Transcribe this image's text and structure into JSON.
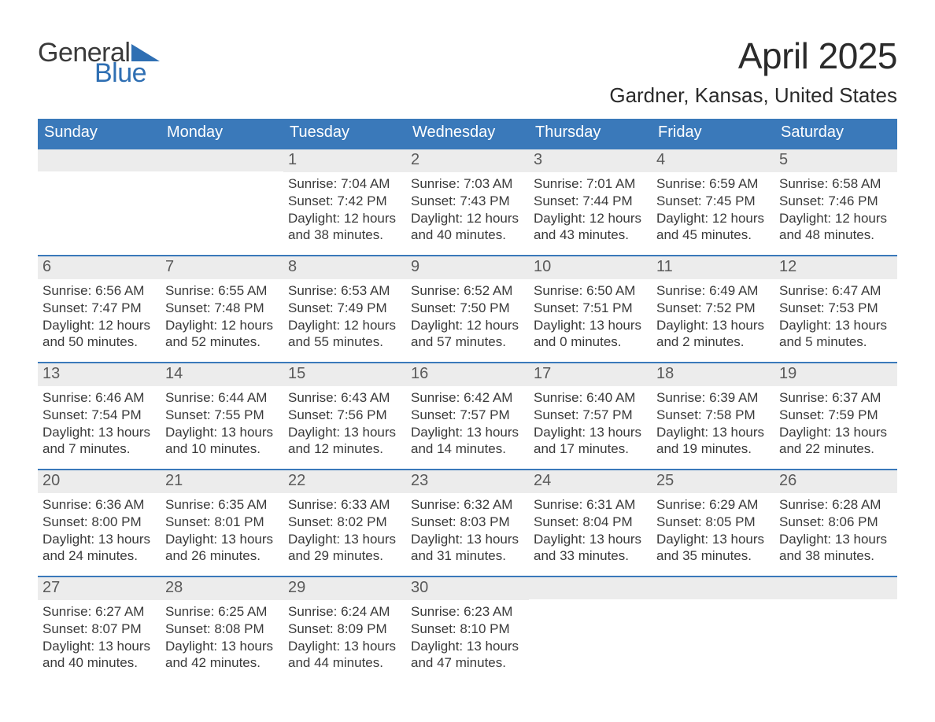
{
  "brand": {
    "word1": "General",
    "word2": "Blue",
    "mark_color": "#2f6fb3"
  },
  "title": "April 2025",
  "location": "Gardner, Kansas, United States",
  "colors": {
    "header_bg": "#3a79ba",
    "header_text": "#ffffff",
    "week_border": "#3a79ba",
    "daynum_bg": "#ececec",
    "text": "#3a3a3a"
  },
  "day_headers": [
    "Sunday",
    "Monday",
    "Tuesday",
    "Wednesday",
    "Thursday",
    "Friday",
    "Saturday"
  ],
  "label": {
    "sunrise": "Sunrise: ",
    "sunset": "Sunset: ",
    "daylight": "Daylight: "
  },
  "weeks": [
    [
      null,
      null,
      {
        "n": "1",
        "sunrise": "7:04 AM",
        "sunset": "7:42 PM",
        "daylight": "12 hours and 38 minutes."
      },
      {
        "n": "2",
        "sunrise": "7:03 AM",
        "sunset": "7:43 PM",
        "daylight": "12 hours and 40 minutes."
      },
      {
        "n": "3",
        "sunrise": "7:01 AM",
        "sunset": "7:44 PM",
        "daylight": "12 hours and 43 minutes."
      },
      {
        "n": "4",
        "sunrise": "6:59 AM",
        "sunset": "7:45 PM",
        "daylight": "12 hours and 45 minutes."
      },
      {
        "n": "5",
        "sunrise": "6:58 AM",
        "sunset": "7:46 PM",
        "daylight": "12 hours and 48 minutes."
      }
    ],
    [
      {
        "n": "6",
        "sunrise": "6:56 AM",
        "sunset": "7:47 PM",
        "daylight": "12 hours and 50 minutes."
      },
      {
        "n": "7",
        "sunrise": "6:55 AM",
        "sunset": "7:48 PM",
        "daylight": "12 hours and 52 minutes."
      },
      {
        "n": "8",
        "sunrise": "6:53 AM",
        "sunset": "7:49 PM",
        "daylight": "12 hours and 55 minutes."
      },
      {
        "n": "9",
        "sunrise": "6:52 AM",
        "sunset": "7:50 PM",
        "daylight": "12 hours and 57 minutes."
      },
      {
        "n": "10",
        "sunrise": "6:50 AM",
        "sunset": "7:51 PM",
        "daylight": "13 hours and 0 minutes."
      },
      {
        "n": "11",
        "sunrise": "6:49 AM",
        "sunset": "7:52 PM",
        "daylight": "13 hours and 2 minutes."
      },
      {
        "n": "12",
        "sunrise": "6:47 AM",
        "sunset": "7:53 PM",
        "daylight": "13 hours and 5 minutes."
      }
    ],
    [
      {
        "n": "13",
        "sunrise": "6:46 AM",
        "sunset": "7:54 PM",
        "daylight": "13 hours and 7 minutes."
      },
      {
        "n": "14",
        "sunrise": "6:44 AM",
        "sunset": "7:55 PM",
        "daylight": "13 hours and 10 minutes."
      },
      {
        "n": "15",
        "sunrise": "6:43 AM",
        "sunset": "7:56 PM",
        "daylight": "13 hours and 12 minutes."
      },
      {
        "n": "16",
        "sunrise": "6:42 AM",
        "sunset": "7:57 PM",
        "daylight": "13 hours and 14 minutes."
      },
      {
        "n": "17",
        "sunrise": "6:40 AM",
        "sunset": "7:57 PM",
        "daylight": "13 hours and 17 minutes."
      },
      {
        "n": "18",
        "sunrise": "6:39 AM",
        "sunset": "7:58 PM",
        "daylight": "13 hours and 19 minutes."
      },
      {
        "n": "19",
        "sunrise": "6:37 AM",
        "sunset": "7:59 PM",
        "daylight": "13 hours and 22 minutes."
      }
    ],
    [
      {
        "n": "20",
        "sunrise": "6:36 AM",
        "sunset": "8:00 PM",
        "daylight": "13 hours and 24 minutes."
      },
      {
        "n": "21",
        "sunrise": "6:35 AM",
        "sunset": "8:01 PM",
        "daylight": "13 hours and 26 minutes."
      },
      {
        "n": "22",
        "sunrise": "6:33 AM",
        "sunset": "8:02 PM",
        "daylight": "13 hours and 29 minutes."
      },
      {
        "n": "23",
        "sunrise": "6:32 AM",
        "sunset": "8:03 PM",
        "daylight": "13 hours and 31 minutes."
      },
      {
        "n": "24",
        "sunrise": "6:31 AM",
        "sunset": "8:04 PM",
        "daylight": "13 hours and 33 minutes."
      },
      {
        "n": "25",
        "sunrise": "6:29 AM",
        "sunset": "8:05 PM",
        "daylight": "13 hours and 35 minutes."
      },
      {
        "n": "26",
        "sunrise": "6:28 AM",
        "sunset": "8:06 PM",
        "daylight": "13 hours and 38 minutes."
      }
    ],
    [
      {
        "n": "27",
        "sunrise": "6:27 AM",
        "sunset": "8:07 PM",
        "daylight": "13 hours and 40 minutes."
      },
      {
        "n": "28",
        "sunrise": "6:25 AM",
        "sunset": "8:08 PM",
        "daylight": "13 hours and 42 minutes."
      },
      {
        "n": "29",
        "sunrise": "6:24 AM",
        "sunset": "8:09 PM",
        "daylight": "13 hours and 44 minutes."
      },
      {
        "n": "30",
        "sunrise": "6:23 AM",
        "sunset": "8:10 PM",
        "daylight": "13 hours and 47 minutes."
      },
      null,
      null,
      null
    ]
  ]
}
